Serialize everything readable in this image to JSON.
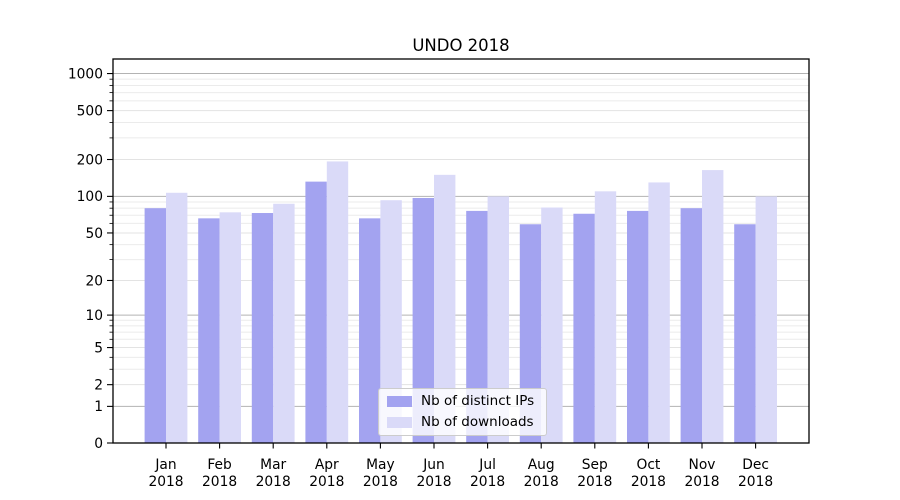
{
  "chart_data": {
    "type": "bar",
    "title": "UNDO 2018",
    "categories": [
      "Jan",
      "Feb",
      "Mar",
      "Apr",
      "May",
      "Jun",
      "Jul",
      "Aug",
      "Sep",
      "Oct",
      "Nov",
      "Dec"
    ],
    "category_year": "2018",
    "series": [
      {
        "name": "Nb of distinct IPs",
        "color": "#a3a3f0",
        "values": [
          80,
          66,
          73,
          132,
          66,
          97,
          76,
          59,
          72,
          76,
          80,
          59
        ]
      },
      {
        "name": "Nb of downloads",
        "color": "#dadaf8",
        "values": [
          107,
          74,
          87,
          193,
          93,
          150,
          100,
          81,
          110,
          130,
          164,
          100
        ]
      }
    ],
    "y_axis": {
      "scale": "log10(1+v)",
      "ticks": [
        0,
        1,
        2,
        5,
        10,
        20,
        50,
        100,
        200,
        500,
        1000
      ],
      "tick_labels": [
        "0",
        "1",
        "2",
        "5",
        "10",
        "20",
        "50",
        "100",
        "200",
        "500",
        "1000"
      ],
      "decade_gridlines": [
        1,
        10,
        100,
        1000
      ],
      "minor_gridlines": [
        3,
        4,
        6,
        7,
        8,
        9,
        30,
        40,
        60,
        70,
        80,
        90,
        300,
        400,
        600,
        700,
        800,
        900
      ],
      "range": [
        0,
        1350
      ],
      "grid": true
    },
    "x_axis": {
      "tick_label_line1": [
        "Jan",
        "Feb",
        "Mar",
        "Apr",
        "May",
        "Jun",
        "Jul",
        "Aug",
        "Sep",
        "Oct",
        "Nov",
        "Dec"
      ],
      "tick_label_line2": "2018"
    },
    "legend": {
      "position": "lower center",
      "entries": [
        "Nb of distinct IPs",
        "Nb of downloads"
      ]
    },
    "style": {
      "grid_major_color": "#b3b3b3",
      "grid_minor_color": "#ebebeb",
      "grid_light_color": "#e3e3e3",
      "spine_color": "#000000",
      "text_color": "#000000"
    }
  }
}
